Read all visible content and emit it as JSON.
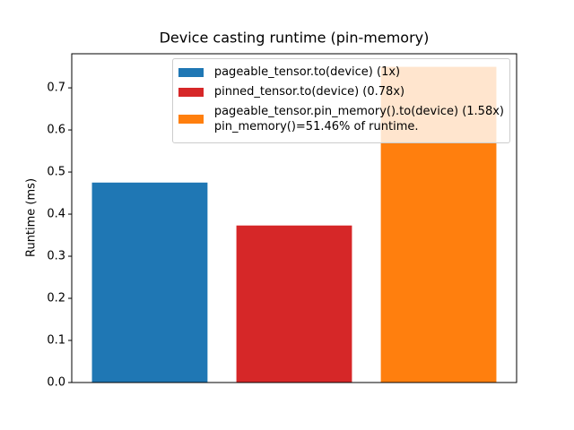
{
  "chart_data": {
    "type": "bar",
    "title": "Device casting runtime (pin-memory)",
    "ylabel": "Runtime (ms)",
    "categories": [
      null,
      null,
      null
    ],
    "series": [
      {
        "name": "pageable_tensor.to(device) (1x)",
        "color": "#1f77b4",
        "values": [
          0.475,
          null,
          null
        ]
      },
      {
        "name": "pinned_tensor.to(device) (0.78x)",
        "color": "#d62728",
        "values": [
          null,
          0.373,
          null
        ]
      },
      {
        "name": "pageable_tensor.pin_memory().to(device) (1.58x)\npin_memory()=51.46% of runtime.",
        "color": "#ff7f0e",
        "values": [
          null,
          null,
          0.75
        ]
      }
    ],
    "ylim": [
      0,
      0.781
    ],
    "yticks": [
      0.0,
      0.1,
      0.2,
      0.3,
      0.4,
      0.5,
      0.6,
      0.7
    ],
    "legend": "upper right",
    "grid": false
  }
}
